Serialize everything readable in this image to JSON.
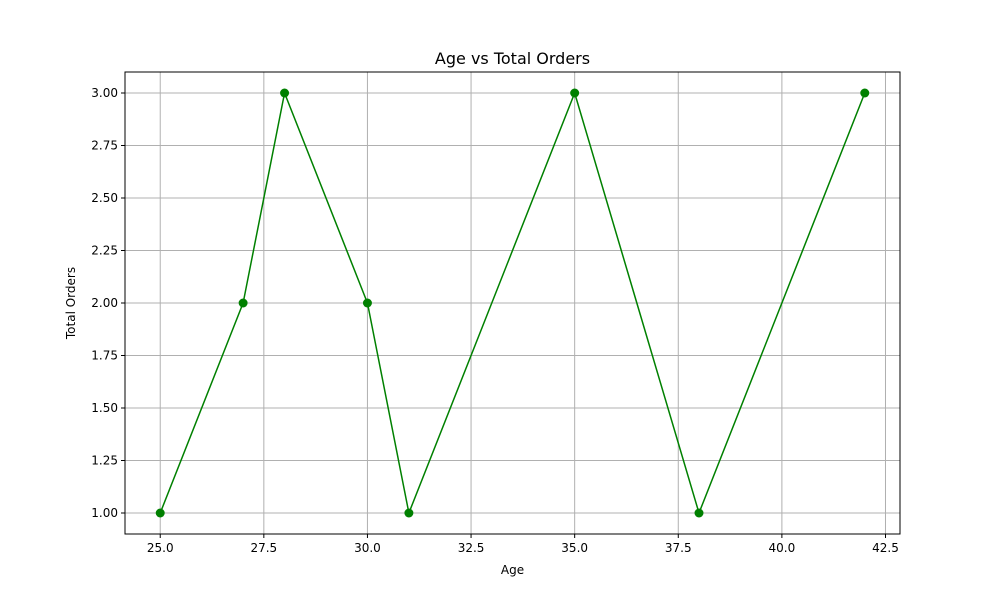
{
  "chart_data": {
    "type": "line",
    "title": "Age vs Total Orders",
    "xlabel": "Age",
    "ylabel": "Total Orders",
    "x": [
      25,
      27,
      28,
      30,
      31,
      35,
      38,
      42
    ],
    "series": [
      {
        "values": [
          1,
          2,
          3,
          2,
          1,
          3,
          1,
          3
        ],
        "color": "#008000",
        "marker": "circle"
      }
    ],
    "xlim": [
      24.15,
      42.85
    ],
    "ylim": [
      0.9,
      3.1
    ],
    "x_ticks": [
      25.0,
      27.5,
      30.0,
      32.5,
      35.0,
      37.5,
      40.0,
      42.5
    ],
    "x_tick_labels": [
      "25.0",
      "27.5",
      "30.0",
      "32.5",
      "35.0",
      "37.5",
      "40.0",
      "42.5"
    ],
    "y_ticks": [
      1.0,
      1.25,
      1.5,
      1.75,
      2.0,
      2.25,
      2.5,
      2.75,
      3.0
    ],
    "y_tick_labels": [
      "1.00",
      "1.25",
      "1.50",
      "1.75",
      "2.00",
      "2.25",
      "2.50",
      "2.75",
      "3.00"
    ],
    "grid": true,
    "legend": false
  }
}
